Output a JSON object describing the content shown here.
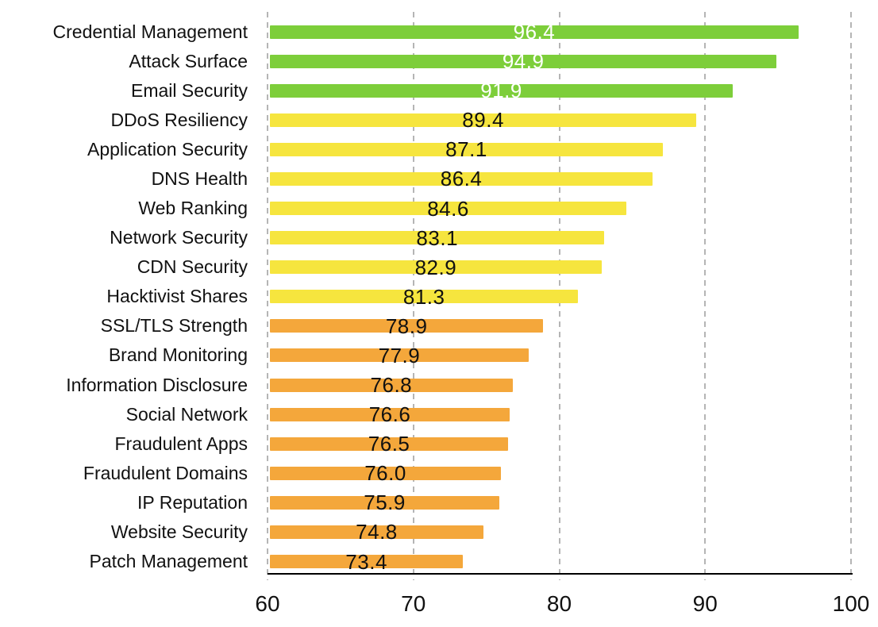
{
  "chart_data": {
    "type": "bar",
    "orientation": "horizontal",
    "title": "",
    "xlabel": "",
    "ylabel": "",
    "xlim": [
      60,
      100
    ],
    "x_ticks": [
      "60",
      "70",
      "80",
      "90",
      "100"
    ],
    "grid": "vertical-dashed",
    "legend": "none",
    "categories": [
      "Credential Management",
      "Attack Surface",
      "Email Security",
      "DDoS Resiliency",
      "Application Security",
      "DNS Health",
      "Web Ranking",
      "Network Security",
      "CDN Security",
      "Hacktivist Shares",
      "SSL/TLS Strength",
      "Brand Monitoring",
      "Information Disclosure",
      "Social Network",
      "Fraudulent Apps",
      "Fraudulent Domains",
      "IP Reputation",
      "Website Security",
      "Patch Management"
    ],
    "values": [
      96.4,
      94.9,
      91.9,
      89.4,
      87.1,
      86.4,
      84.6,
      83.1,
      82.9,
      81.3,
      78.9,
      77.9,
      76.8,
      76.6,
      76.5,
      76.0,
      75.9,
      74.8,
      73.4
    ],
    "value_labels": [
      "96.4",
      "94.9",
      "91.9",
      "89.4",
      "87.1",
      "86.4",
      "84.6",
      "83.1",
      "82.9",
      "81.3",
      "78.9",
      "77.9",
      "76.8",
      "76.6",
      "76.5",
      "76.0",
      "75.9",
      "74.8",
      "73.4"
    ],
    "bar_groups": [
      "green",
      "green",
      "green",
      "yellow",
      "yellow",
      "yellow",
      "yellow",
      "yellow",
      "yellow",
      "yellow",
      "orange",
      "orange",
      "orange",
      "orange",
      "orange",
      "orange",
      "orange",
      "orange",
      "orange"
    ],
    "colors": {
      "green": "#7DCE3A",
      "yellow": "#F6E53E",
      "orange": "#F4A73B",
      "gridline": "#b5b5b5",
      "axis": "#000000",
      "text": "#111111",
      "value_text_on_green": "#ffffff",
      "value_text_on_yellow": "#111111",
      "value_text_on_orange": "#111111"
    }
  }
}
